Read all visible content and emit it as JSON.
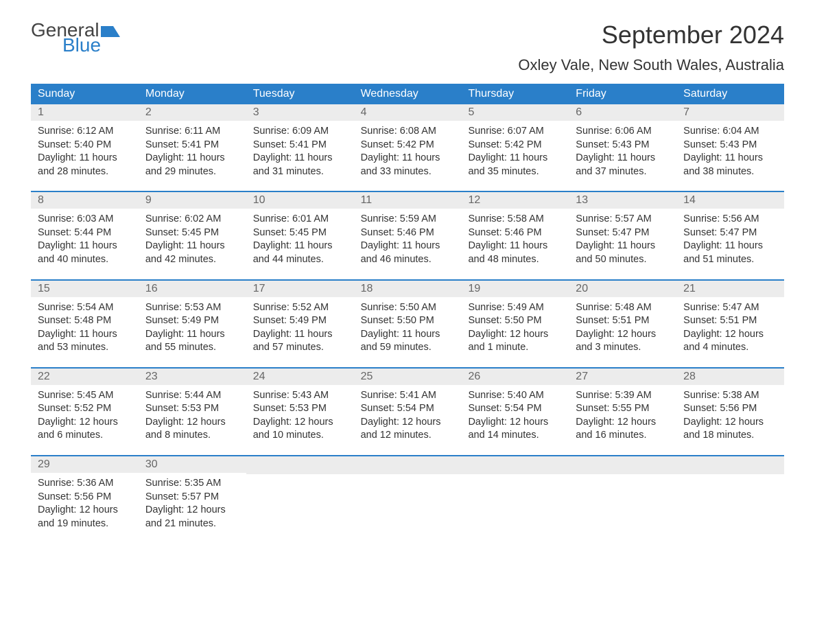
{
  "logo": {
    "line1": "General",
    "line2": "Blue"
  },
  "title": "September 2024",
  "location": "Oxley Vale, New South Wales, Australia",
  "colors": {
    "header_bg": "#2a7fc9",
    "header_text": "#ffffff",
    "day_bar_bg": "#ececec",
    "day_bar_text": "#666666",
    "body_text": "#333333",
    "week_border": "#2a7fc9"
  },
  "day_headers": [
    "Sunday",
    "Monday",
    "Tuesday",
    "Wednesday",
    "Thursday",
    "Friday",
    "Saturday"
  ],
  "weeks": [
    [
      {
        "num": "1",
        "sunrise": "Sunrise: 6:12 AM",
        "sunset": "Sunset: 5:40 PM",
        "daylight1": "Daylight: 11 hours",
        "daylight2": "and 28 minutes."
      },
      {
        "num": "2",
        "sunrise": "Sunrise: 6:11 AM",
        "sunset": "Sunset: 5:41 PM",
        "daylight1": "Daylight: 11 hours",
        "daylight2": "and 29 minutes."
      },
      {
        "num": "3",
        "sunrise": "Sunrise: 6:09 AM",
        "sunset": "Sunset: 5:41 PM",
        "daylight1": "Daylight: 11 hours",
        "daylight2": "and 31 minutes."
      },
      {
        "num": "4",
        "sunrise": "Sunrise: 6:08 AM",
        "sunset": "Sunset: 5:42 PM",
        "daylight1": "Daylight: 11 hours",
        "daylight2": "and 33 minutes."
      },
      {
        "num": "5",
        "sunrise": "Sunrise: 6:07 AM",
        "sunset": "Sunset: 5:42 PM",
        "daylight1": "Daylight: 11 hours",
        "daylight2": "and 35 minutes."
      },
      {
        "num": "6",
        "sunrise": "Sunrise: 6:06 AM",
        "sunset": "Sunset: 5:43 PM",
        "daylight1": "Daylight: 11 hours",
        "daylight2": "and 37 minutes."
      },
      {
        "num": "7",
        "sunrise": "Sunrise: 6:04 AM",
        "sunset": "Sunset: 5:43 PM",
        "daylight1": "Daylight: 11 hours",
        "daylight2": "and 38 minutes."
      }
    ],
    [
      {
        "num": "8",
        "sunrise": "Sunrise: 6:03 AM",
        "sunset": "Sunset: 5:44 PM",
        "daylight1": "Daylight: 11 hours",
        "daylight2": "and 40 minutes."
      },
      {
        "num": "9",
        "sunrise": "Sunrise: 6:02 AM",
        "sunset": "Sunset: 5:45 PM",
        "daylight1": "Daylight: 11 hours",
        "daylight2": "and 42 minutes."
      },
      {
        "num": "10",
        "sunrise": "Sunrise: 6:01 AM",
        "sunset": "Sunset: 5:45 PM",
        "daylight1": "Daylight: 11 hours",
        "daylight2": "and 44 minutes."
      },
      {
        "num": "11",
        "sunrise": "Sunrise: 5:59 AM",
        "sunset": "Sunset: 5:46 PM",
        "daylight1": "Daylight: 11 hours",
        "daylight2": "and 46 minutes."
      },
      {
        "num": "12",
        "sunrise": "Sunrise: 5:58 AM",
        "sunset": "Sunset: 5:46 PM",
        "daylight1": "Daylight: 11 hours",
        "daylight2": "and 48 minutes."
      },
      {
        "num": "13",
        "sunrise": "Sunrise: 5:57 AM",
        "sunset": "Sunset: 5:47 PM",
        "daylight1": "Daylight: 11 hours",
        "daylight2": "and 50 minutes."
      },
      {
        "num": "14",
        "sunrise": "Sunrise: 5:56 AM",
        "sunset": "Sunset: 5:47 PM",
        "daylight1": "Daylight: 11 hours",
        "daylight2": "and 51 minutes."
      }
    ],
    [
      {
        "num": "15",
        "sunrise": "Sunrise: 5:54 AM",
        "sunset": "Sunset: 5:48 PM",
        "daylight1": "Daylight: 11 hours",
        "daylight2": "and 53 minutes."
      },
      {
        "num": "16",
        "sunrise": "Sunrise: 5:53 AM",
        "sunset": "Sunset: 5:49 PM",
        "daylight1": "Daylight: 11 hours",
        "daylight2": "and 55 minutes."
      },
      {
        "num": "17",
        "sunrise": "Sunrise: 5:52 AM",
        "sunset": "Sunset: 5:49 PM",
        "daylight1": "Daylight: 11 hours",
        "daylight2": "and 57 minutes."
      },
      {
        "num": "18",
        "sunrise": "Sunrise: 5:50 AM",
        "sunset": "Sunset: 5:50 PM",
        "daylight1": "Daylight: 11 hours",
        "daylight2": "and 59 minutes."
      },
      {
        "num": "19",
        "sunrise": "Sunrise: 5:49 AM",
        "sunset": "Sunset: 5:50 PM",
        "daylight1": "Daylight: 12 hours",
        "daylight2": "and 1 minute."
      },
      {
        "num": "20",
        "sunrise": "Sunrise: 5:48 AM",
        "sunset": "Sunset: 5:51 PM",
        "daylight1": "Daylight: 12 hours",
        "daylight2": "and 3 minutes."
      },
      {
        "num": "21",
        "sunrise": "Sunrise: 5:47 AM",
        "sunset": "Sunset: 5:51 PM",
        "daylight1": "Daylight: 12 hours",
        "daylight2": "and 4 minutes."
      }
    ],
    [
      {
        "num": "22",
        "sunrise": "Sunrise: 5:45 AM",
        "sunset": "Sunset: 5:52 PM",
        "daylight1": "Daylight: 12 hours",
        "daylight2": "and 6 minutes."
      },
      {
        "num": "23",
        "sunrise": "Sunrise: 5:44 AM",
        "sunset": "Sunset: 5:53 PM",
        "daylight1": "Daylight: 12 hours",
        "daylight2": "and 8 minutes."
      },
      {
        "num": "24",
        "sunrise": "Sunrise: 5:43 AM",
        "sunset": "Sunset: 5:53 PM",
        "daylight1": "Daylight: 12 hours",
        "daylight2": "and 10 minutes."
      },
      {
        "num": "25",
        "sunrise": "Sunrise: 5:41 AM",
        "sunset": "Sunset: 5:54 PM",
        "daylight1": "Daylight: 12 hours",
        "daylight2": "and 12 minutes."
      },
      {
        "num": "26",
        "sunrise": "Sunrise: 5:40 AM",
        "sunset": "Sunset: 5:54 PM",
        "daylight1": "Daylight: 12 hours",
        "daylight2": "and 14 minutes."
      },
      {
        "num": "27",
        "sunrise": "Sunrise: 5:39 AM",
        "sunset": "Sunset: 5:55 PM",
        "daylight1": "Daylight: 12 hours",
        "daylight2": "and 16 minutes."
      },
      {
        "num": "28",
        "sunrise": "Sunrise: 5:38 AM",
        "sunset": "Sunset: 5:56 PM",
        "daylight1": "Daylight: 12 hours",
        "daylight2": "and 18 minutes."
      }
    ],
    [
      {
        "num": "29",
        "sunrise": "Sunrise: 5:36 AM",
        "sunset": "Sunset: 5:56 PM",
        "daylight1": "Daylight: 12 hours",
        "daylight2": "and 19 minutes."
      },
      {
        "num": "30",
        "sunrise": "Sunrise: 5:35 AM",
        "sunset": "Sunset: 5:57 PM",
        "daylight1": "Daylight: 12 hours",
        "daylight2": "and 21 minutes."
      },
      null,
      null,
      null,
      null,
      null
    ]
  ]
}
